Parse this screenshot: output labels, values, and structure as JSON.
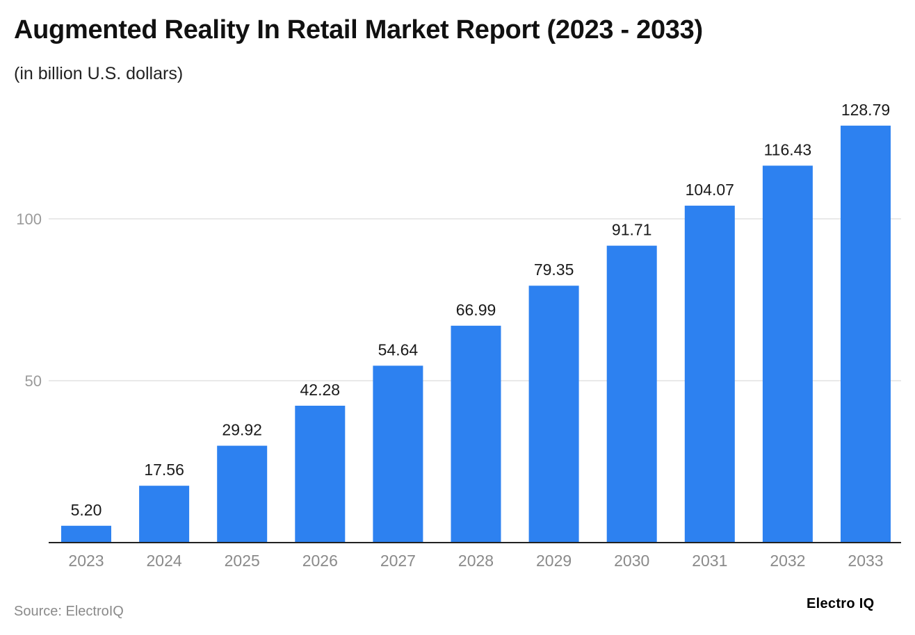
{
  "chart_data": {
    "type": "bar",
    "title": "Augmented Reality In Retail Market Report (2023 - 2033)",
    "subtitle": "(in billion U.S. dollars)",
    "categories": [
      "2023",
      "2024",
      "2025",
      "2026",
      "2027",
      "2028",
      "2029",
      "2030",
      "2031",
      "2032",
      "2033"
    ],
    "values": [
      5.2,
      17.56,
      29.92,
      42.28,
      54.64,
      66.99,
      79.35,
      91.71,
      104.07,
      116.43,
      128.79
    ],
    "value_labels": [
      "5.20",
      "17.56",
      "29.92",
      "42.28",
      "54.64",
      "66.99",
      "79.35",
      "91.71",
      "104.07",
      "116.43",
      "128.79"
    ],
    "y_ticks": [
      50,
      100
    ],
    "ylim": [
      0,
      140
    ],
    "xlabel": "",
    "ylabel": "",
    "grid": true,
    "bar_color": "#2d81f0"
  },
  "footer": {
    "source": "Source: ElectroIQ",
    "brand": "Electro IQ"
  }
}
